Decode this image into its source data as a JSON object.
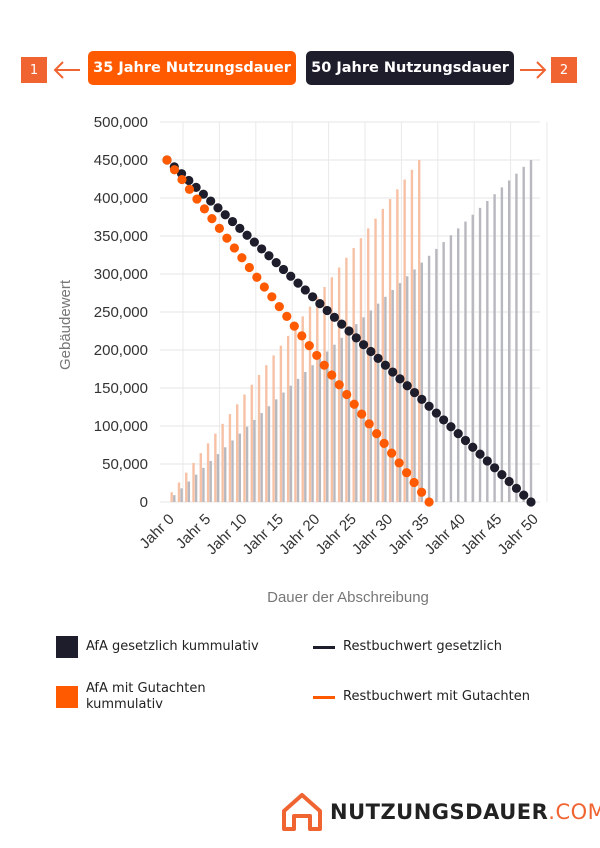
{
  "header": {
    "badge_left": "1",
    "badge_right": "2",
    "pill_orange_label": "35 Jahre Nutzungsdauer",
    "pill_dark_label": "50 Jahre Nutzungsdauer"
  },
  "chart_data": {
    "type": "bar",
    "title": "",
    "xlabel": "Dauer der Abschreibung",
    "ylabel": "Gebäudewert",
    "ylim": [
      0,
      500000
    ],
    "y_ticks": [
      "500,000",
      "450,000",
      "400,000",
      "350,000",
      "300,000",
      "250,000",
      "200,000",
      "150,000",
      "100,000",
      "50,000",
      "0"
    ],
    "x_ticks": [
      "Jahr 0",
      "Jahr 5",
      "Jahr 10",
      "Jahr 15",
      "Jahr 20",
      "Jahr 25",
      "Jahr 30",
      "Jahr 35",
      "Jahr 40",
      "Jahr 45",
      "Jahr 50"
    ],
    "building_value": 450000,
    "series": [
      {
        "name": "AfA gesetzlich kummulativ",
        "kind": "bar",
        "years": 50,
        "step": 9000,
        "color": "#b8b8bf"
      },
      {
        "name": "AfA mit Gutachten kummulativ",
        "kind": "bar",
        "years": 35,
        "step": 12857,
        "color": "#f7c1a6"
      },
      {
        "name": "Restbuchwert gesetzlich",
        "kind": "line",
        "years": 50,
        "start": 450000,
        "end": 0,
        "color": "#1d1d2c"
      },
      {
        "name": "Restbuchwert mit Gutachten",
        "kind": "line",
        "years": 35,
        "start": 450000,
        "end": 0,
        "color": "#ff5a00"
      }
    ]
  },
  "legend": {
    "afa_gesetzlich": "AfA gesetzlich kummulativ",
    "afa_gutachten_line1": "AfA mit Gutachten",
    "afa_gutachten_line2": "kummulativ",
    "rest_gesetzlich": "Restbuchwert gesetzlich",
    "rest_gutachten": "Restbuchwert mit Gutachten"
  },
  "colors": {
    "orange": "#ff5a00",
    "dark": "#1d1d2c",
    "accent": "#f06432"
  },
  "logo": {
    "bold": "NUTZUNGSDAUER",
    "light": ".COM"
  }
}
